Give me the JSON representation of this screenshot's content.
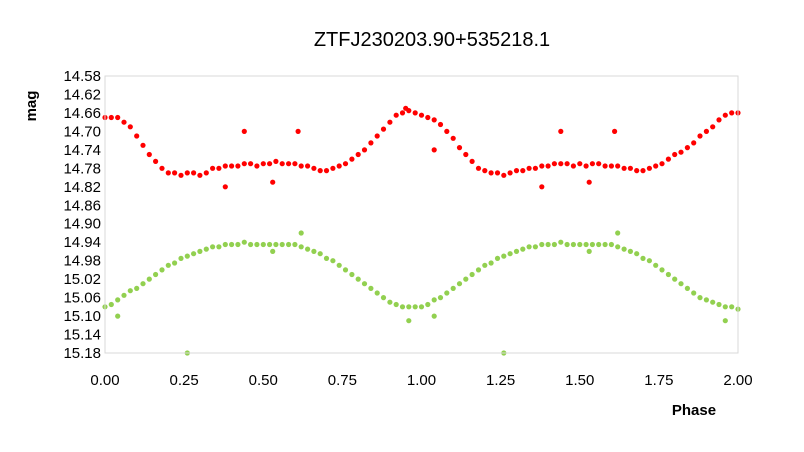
{
  "chart_data": {
    "type": "scatter",
    "title": "ZTFJ230203.90+535218.1",
    "xlabel": "Phase",
    "ylabel": "mag",
    "xlim": [
      0.0,
      2.0
    ],
    "ylim": [
      14.58,
      15.18
    ],
    "y_inverted": true,
    "grid": false,
    "legend": "none",
    "x_ticks": [
      "0.00",
      "0.25",
      "0.50",
      "0.75",
      "1.00",
      "1.25",
      "1.50",
      "1.75",
      "2.00"
    ],
    "y_ticks": [
      "14.58",
      "14.62",
      "14.66",
      "14.70",
      "14.74",
      "14.78",
      "14.82",
      "14.86",
      "14.90",
      "14.94",
      "14.98",
      "15.02",
      "15.06",
      "15.10",
      "15.14",
      "15.18"
    ],
    "series": [
      {
        "color": "#ff0000",
        "points": [
          [
            0.0,
            14.67
          ],
          [
            0.02,
            14.67
          ],
          [
            0.04,
            14.67
          ],
          [
            0.06,
            14.68
          ],
          [
            0.08,
            14.69
          ],
          [
            0.1,
            14.71
          ],
          [
            0.12,
            14.73
          ],
          [
            0.14,
            14.75
          ],
          [
            0.16,
            14.765
          ],
          [
            0.18,
            14.78
          ],
          [
            0.2,
            14.79
          ],
          [
            0.22,
            14.79
          ],
          [
            0.24,
            14.795
          ],
          [
            0.26,
            14.79
          ],
          [
            0.28,
            14.79
          ],
          [
            0.3,
            14.795
          ],
          [
            0.32,
            14.79
          ],
          [
            0.34,
            14.78
          ],
          [
            0.36,
            14.78
          ],
          [
            0.38,
            14.775
          ],
          [
            0.4,
            14.775
          ],
          [
            0.42,
            14.775
          ],
          [
            0.44,
            14.77
          ],
          [
            0.46,
            14.77
          ],
          [
            0.48,
            14.775
          ],
          [
            0.5,
            14.77
          ],
          [
            0.52,
            14.77
          ],
          [
            0.54,
            14.765
          ],
          [
            0.56,
            14.77
          ],
          [
            0.58,
            14.77
          ],
          [
            0.6,
            14.77
          ],
          [
            0.62,
            14.775
          ],
          [
            0.64,
            14.775
          ],
          [
            0.66,
            14.78
          ],
          [
            0.68,
            14.785
          ],
          [
            0.7,
            14.785
          ],
          [
            0.72,
            14.78
          ],
          [
            0.74,
            14.775
          ],
          [
            0.76,
            14.77
          ],
          [
            0.78,
            14.76
          ],
          [
            0.8,
            14.75
          ],
          [
            0.82,
            14.74
          ],
          [
            0.84,
            14.725
          ],
          [
            0.86,
            14.71
          ],
          [
            0.88,
            14.695
          ],
          [
            0.9,
            14.68
          ],
          [
            0.92,
            14.665
          ],
          [
            0.94,
            14.66
          ],
          [
            0.96,
            14.655
          ],
          [
            0.98,
            14.66
          ],
          [
            1.0,
            14.665
          ],
          [
            1.02,
            14.67
          ],
          [
            1.04,
            14.675
          ],
          [
            1.06,
            14.685
          ],
          [
            1.08,
            14.7
          ],
          [
            1.1,
            14.715
          ],
          [
            1.12,
            14.735
          ],
          [
            1.14,
            14.75
          ],
          [
            1.16,
            14.765
          ],
          [
            1.18,
            14.78
          ],
          [
            1.2,
            14.785
          ],
          [
            1.22,
            14.79
          ],
          [
            1.24,
            14.79
          ],
          [
            1.26,
            14.795
          ],
          [
            1.28,
            14.79
          ],
          [
            1.3,
            14.785
          ],
          [
            1.32,
            14.785
          ],
          [
            1.34,
            14.78
          ],
          [
            1.36,
            14.78
          ],
          [
            1.38,
            14.775
          ],
          [
            1.4,
            14.775
          ],
          [
            1.42,
            14.77
          ],
          [
            1.44,
            14.77
          ],
          [
            1.46,
            14.77
          ],
          [
            1.48,
            14.775
          ],
          [
            1.5,
            14.77
          ],
          [
            1.52,
            14.775
          ],
          [
            1.54,
            14.77
          ],
          [
            1.56,
            14.77
          ],
          [
            1.58,
            14.775
          ],
          [
            1.6,
            14.775
          ],
          [
            1.62,
            14.775
          ],
          [
            1.64,
            14.78
          ],
          [
            1.66,
            14.78
          ],
          [
            1.68,
            14.785
          ],
          [
            1.7,
            14.785
          ],
          [
            1.72,
            14.78
          ],
          [
            1.74,
            14.775
          ],
          [
            1.76,
            14.77
          ],
          [
            1.78,
            14.76
          ],
          [
            1.8,
            14.75
          ],
          [
            1.82,
            14.745
          ],
          [
            1.84,
            14.735
          ],
          [
            1.86,
            14.725
          ],
          [
            1.88,
            14.71
          ],
          [
            1.9,
            14.7
          ],
          [
            1.92,
            14.69
          ],
          [
            1.94,
            14.675
          ],
          [
            1.96,
            14.665
          ],
          [
            1.98,
            14.66
          ],
          [
            2.0,
            14.66
          ],
          [
            0.44,
            14.7
          ],
          [
            0.61,
            14.7
          ],
          [
            0.38,
            14.82
          ],
          [
            0.53,
            14.81
          ],
          [
            1.44,
            14.7
          ],
          [
            1.61,
            14.7
          ],
          [
            1.38,
            14.82
          ],
          [
            1.53,
            14.81
          ],
          [
            1.04,
            14.74
          ],
          [
            0.95,
            14.65
          ]
        ]
      },
      {
        "color": "#92d050",
        "points": [
          [
            0.0,
            15.08
          ],
          [
            0.02,
            15.075
          ],
          [
            0.04,
            15.065
          ],
          [
            0.06,
            15.055
          ],
          [
            0.08,
            15.045
          ],
          [
            0.1,
            15.04
          ],
          [
            0.12,
            15.03
          ],
          [
            0.14,
            15.02
          ],
          [
            0.16,
            15.01
          ],
          [
            0.18,
            15.0
          ],
          [
            0.2,
            14.99
          ],
          [
            0.22,
            14.985
          ],
          [
            0.24,
            14.975
          ],
          [
            0.26,
            14.97
          ],
          [
            0.28,
            14.965
          ],
          [
            0.3,
            14.96
          ],
          [
            0.32,
            14.955
          ],
          [
            0.34,
            14.95
          ],
          [
            0.36,
            14.95
          ],
          [
            0.38,
            14.945
          ],
          [
            0.4,
            14.945
          ],
          [
            0.42,
            14.945
          ],
          [
            0.44,
            14.94
          ],
          [
            0.46,
            14.945
          ],
          [
            0.48,
            14.945
          ],
          [
            0.5,
            14.945
          ],
          [
            0.52,
            14.945
          ],
          [
            0.54,
            14.945
          ],
          [
            0.56,
            14.945
          ],
          [
            0.58,
            14.945
          ],
          [
            0.6,
            14.945
          ],
          [
            0.62,
            14.95
          ],
          [
            0.64,
            14.955
          ],
          [
            0.66,
            14.96
          ],
          [
            0.68,
            14.965
          ],
          [
            0.7,
            14.975
          ],
          [
            0.72,
            14.98
          ],
          [
            0.74,
            14.99
          ],
          [
            0.76,
            15.0
          ],
          [
            0.78,
            15.01
          ],
          [
            0.8,
            15.02
          ],
          [
            0.82,
            15.03
          ],
          [
            0.84,
            15.04
          ],
          [
            0.86,
            15.05
          ],
          [
            0.88,
            15.06
          ],
          [
            0.9,
            15.07
          ],
          [
            0.92,
            15.075
          ],
          [
            0.94,
            15.08
          ],
          [
            0.96,
            15.08
          ],
          [
            0.98,
            15.08
          ],
          [
            1.0,
            15.08
          ],
          [
            1.02,
            15.075
          ],
          [
            1.04,
            15.065
          ],
          [
            1.06,
            15.06
          ],
          [
            1.08,
            15.05
          ],
          [
            1.1,
            15.04
          ],
          [
            1.12,
            15.03
          ],
          [
            1.14,
            15.02
          ],
          [
            1.16,
            15.01
          ],
          [
            1.18,
            15.0
          ],
          [
            1.2,
            14.99
          ],
          [
            1.22,
            14.985
          ],
          [
            1.24,
            14.975
          ],
          [
            1.26,
            14.97
          ],
          [
            1.28,
            14.965
          ],
          [
            1.3,
            14.96
          ],
          [
            1.32,
            14.955
          ],
          [
            1.34,
            14.95
          ],
          [
            1.36,
            14.95
          ],
          [
            1.38,
            14.945
          ],
          [
            1.4,
            14.945
          ],
          [
            1.42,
            14.945
          ],
          [
            1.44,
            14.94
          ],
          [
            1.46,
            14.945
          ],
          [
            1.48,
            14.945
          ],
          [
            1.5,
            14.945
          ],
          [
            1.52,
            14.945
          ],
          [
            1.54,
            14.945
          ],
          [
            1.56,
            14.945
          ],
          [
            1.58,
            14.945
          ],
          [
            1.6,
            14.945
          ],
          [
            1.62,
            14.95
          ],
          [
            1.64,
            14.955
          ],
          [
            1.66,
            14.96
          ],
          [
            1.68,
            14.965
          ],
          [
            1.7,
            14.975
          ],
          [
            1.72,
            14.98
          ],
          [
            1.74,
            14.99
          ],
          [
            1.76,
            15.0
          ],
          [
            1.78,
            15.01
          ],
          [
            1.8,
            15.02
          ],
          [
            1.82,
            15.03
          ],
          [
            1.84,
            15.04
          ],
          [
            1.86,
            15.05
          ],
          [
            1.88,
            15.06
          ],
          [
            1.9,
            15.065
          ],
          [
            1.92,
            15.07
          ],
          [
            1.94,
            15.075
          ],
          [
            1.96,
            15.08
          ],
          [
            1.98,
            15.08
          ],
          [
            2.0,
            15.085
          ],
          [
            0.26,
            15.18
          ],
          [
            1.26,
            15.18
          ],
          [
            0.62,
            14.92
          ],
          [
            1.62,
            14.92
          ],
          [
            0.04,
            15.1
          ],
          [
            1.04,
            15.1
          ],
          [
            0.96,
            15.11
          ],
          [
            1.96,
            15.11
          ],
          [
            0.53,
            14.96
          ],
          [
            1.53,
            14.96
          ]
        ]
      }
    ]
  }
}
